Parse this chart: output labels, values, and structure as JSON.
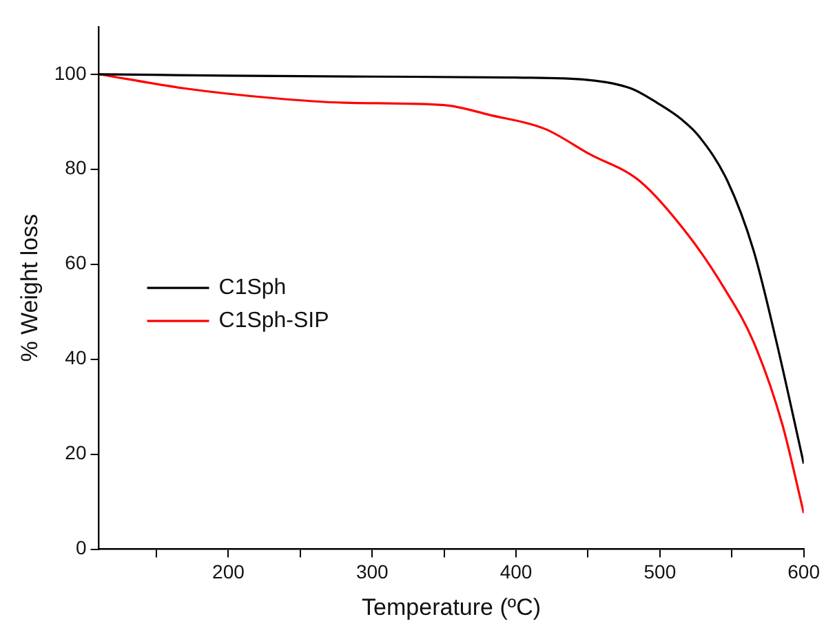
{
  "chart_data": {
    "type": "line",
    "xlabel": "Temperature (ºC)",
    "ylabel": "% Weight loss",
    "xlim": [
      110,
      600
    ],
    "xticks": [
      {
        "value": 150,
        "label": null
      },
      200,
      {
        "value": 250,
        "label": null
      },
      300,
      {
        "value": 350,
        "label": null
      },
      400,
      {
        "value": 450,
        "label": null
      },
      500,
      {
        "value": 550,
        "label": null
      },
      600
    ],
    "ylim": [
      0,
      110
    ],
    "yticks": [
      0,
      20,
      40,
      60,
      80,
      100
    ],
    "grid": false,
    "legend": "left",
    "marker": "none",
    "line_style": "solid",
    "series": [
      {
        "name": "C1Sph",
        "color": "#000000",
        "x": [
          110,
          200,
          300,
          400,
          450,
          480,
          499,
          515,
          527,
          547,
          565,
          581,
          600
        ],
        "values": [
          100,
          99.7,
          99.5,
          99.3,
          98.8,
          97,
          93.8,
          90.5,
          87,
          77.5,
          63,
          43.7,
          18
        ]
      },
      {
        "name": "C1Sph-SIP",
        "color": "#ff0000",
        "x": [
          110,
          170,
          230,
          280,
          350,
          382,
          420,
          451,
          486,
          520,
          544,
          565,
          585,
          600
        ],
        "values": [
          100,
          97,
          95,
          94,
          93.5,
          91.4,
          88.5,
          83.2,
          77.5,
          66,
          55.3,
          43.7,
          26.4,
          7.6
        ]
      }
    ]
  }
}
